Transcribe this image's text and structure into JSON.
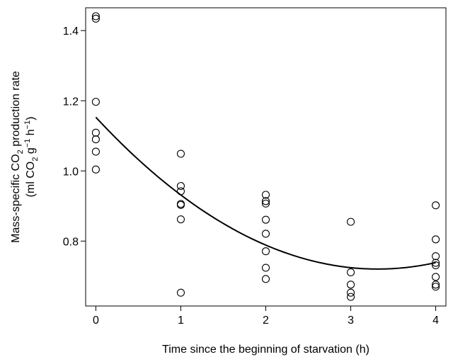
{
  "chart_data": {
    "type": "scatter",
    "xlabel": "Time since the beginning of starvation (h)",
    "ylabel_line1": {
      "pre": "Mass-specific CO",
      "sub": "2",
      "post": " production rate"
    },
    "ylabel_line2": {
      "p1": "(ml CO",
      "sub": "2",
      "p2": " g",
      "sup1": "−1",
      "p3": " h",
      "sup2": "−1",
      "p4": ")"
    },
    "xlim": [
      -0.12,
      4.12
    ],
    "ylim": [
      0.615,
      1.465
    ],
    "x_ticks": [
      0,
      1,
      2,
      3,
      4
    ],
    "x_tick_labels": [
      "0",
      "1",
      "2",
      "3",
      "4"
    ],
    "y_ticks": [
      0.8,
      1.0,
      1.2,
      1.4
    ],
    "y_tick_labels": [
      "0.8",
      "1.0",
      "1.2",
      "1.4"
    ],
    "grid": false,
    "points": [
      {
        "x": 0,
        "y": 1.441
      },
      {
        "x": 0,
        "y": 1.434
      },
      {
        "x": 0,
        "y": 1.197
      },
      {
        "x": 0,
        "y": 1.109
      },
      {
        "x": 0,
        "y": 1.09
      },
      {
        "x": 0,
        "y": 1.055
      },
      {
        "x": 0,
        "y": 1.004
      },
      {
        "x": 1,
        "y": 1.049
      },
      {
        "x": 1,
        "y": 0.957
      },
      {
        "x": 1,
        "y": 0.942
      },
      {
        "x": 1,
        "y": 0.906
      },
      {
        "x": 1,
        "y": 0.903
      },
      {
        "x": 1,
        "y": 0.862
      },
      {
        "x": 1,
        "y": 0.653
      },
      {
        "x": 2,
        "y": 0.932
      },
      {
        "x": 2,
        "y": 0.914
      },
      {
        "x": 2,
        "y": 0.907
      },
      {
        "x": 2,
        "y": 0.861
      },
      {
        "x": 2,
        "y": 0.821
      },
      {
        "x": 2,
        "y": 0.771
      },
      {
        "x": 2,
        "y": 0.724
      },
      {
        "x": 2,
        "y": 0.692
      },
      {
        "x": 3,
        "y": 0.855
      },
      {
        "x": 3,
        "y": 0.711
      },
      {
        "x": 3,
        "y": 0.676
      },
      {
        "x": 3,
        "y": 0.653
      },
      {
        "x": 3,
        "y": 0.641
      },
      {
        "x": 4,
        "y": 0.902
      },
      {
        "x": 4,
        "y": 0.805
      },
      {
        "x": 4,
        "y": 0.757
      },
      {
        "x": 4,
        "y": 0.738
      },
      {
        "x": 4,
        "y": 0.731
      },
      {
        "x": 4,
        "y": 0.698
      },
      {
        "x": 4,
        "y": 0.676
      },
      {
        "x": 4,
        "y": 0.67
      }
    ],
    "fit_curve": {
      "type": "quadratic",
      "coefficients": {
        "a": 0.0393,
        "b": -0.2608,
        "c": 1.153
      },
      "x_range": [
        0,
        4
      ]
    },
    "colors": {
      "points": "#000000",
      "curve": "#000000"
    }
  }
}
